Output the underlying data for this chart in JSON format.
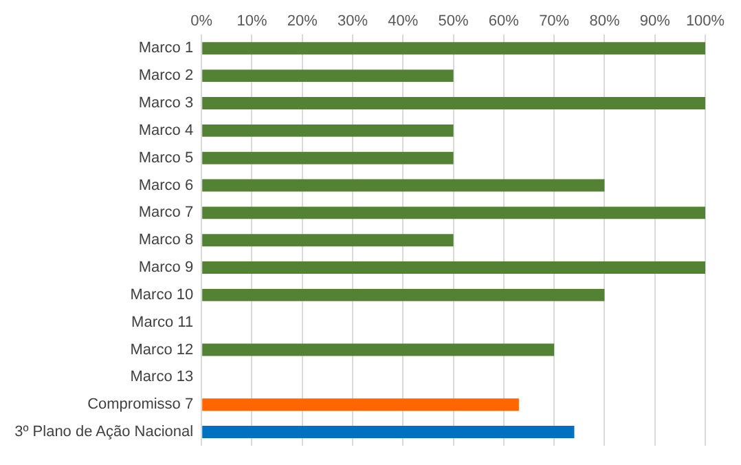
{
  "chart_data": {
    "type": "bar",
    "orientation": "horizontal",
    "categories": [
      "Marco 1",
      "Marco 2",
      "Marco 3",
      "Marco 4",
      "Marco 5",
      "Marco 6",
      "Marco 7",
      "Marco 8",
      "Marco 9",
      "Marco 10",
      "Marco 11",
      "Marco 12",
      "Marco 13",
      "Compromisso 7",
      "3º Plano de Ação Nacional"
    ],
    "values": [
      100,
      50,
      100,
      50,
      50,
      80,
      100,
      50,
      100,
      80,
      null,
      70,
      null,
      63,
      74
    ],
    "colors": [
      "#548235",
      "#548235",
      "#548235",
      "#548235",
      "#548235",
      "#548235",
      "#548235",
      "#548235",
      "#548235",
      "#548235",
      "#548235",
      "#548235",
      "#548235",
      "#ff6600",
      "#0070c0"
    ],
    "xlim": [
      0,
      100
    ],
    "xticks": [
      {
        "value": 0,
        "label": "0%"
      },
      {
        "value": 10,
        "label": "10%"
      },
      {
        "value": 20,
        "label": "20%"
      },
      {
        "value": 30,
        "label": "30%"
      },
      {
        "value": 40,
        "label": "40%"
      },
      {
        "value": 50,
        "label": "50%"
      },
      {
        "value": 60,
        "label": "60%"
      },
      {
        "value": 70,
        "label": "70%"
      },
      {
        "value": 80,
        "label": "80%"
      },
      {
        "value": 90,
        "label": "90%"
      },
      {
        "value": 100,
        "label": "100%"
      }
    ],
    "grid": "x",
    "legend": false
  }
}
